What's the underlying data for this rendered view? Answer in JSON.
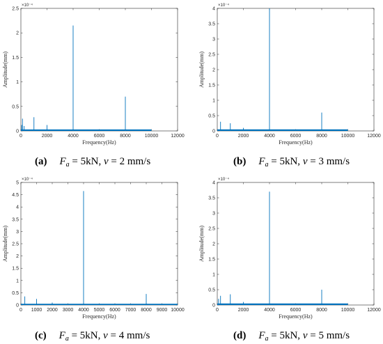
{
  "chart_data": [
    {
      "type": "line",
      "panel": "a",
      "caption": {
        "letter": "(a)",
        "load": "5kN",
        "speed": "2",
        "unit": "mm/s"
      },
      "xlabel": "Frequency(Hz)",
      "ylabel": "Amplitude(mm)",
      "y_exponent": "×10⁻⁴",
      "xlim": [
        0,
        12000
      ],
      "ylim": [
        0,
        2.5
      ],
      "xticks": [
        0,
        2000,
        4000,
        6000,
        8000,
        10000,
        12000
      ],
      "yticks": [
        0,
        0.5,
        1,
        1.5,
        2,
        2.5
      ],
      "ytick_labels": [
        "0",
        "0.5",
        "1",
        "1.5",
        "2",
        "2.5"
      ],
      "noise_floor": 0.03,
      "data_xmax": 10000,
      "x": [
        60,
        120,
        250,
        1000,
        2000,
        4000,
        8000
      ],
      "y": [
        0.12,
        0.25,
        0.1,
        0.28,
        0.12,
        2.15,
        0.7
      ]
    },
    {
      "type": "line",
      "panel": "b",
      "caption": {
        "letter": "(b)",
        "load": "5kN",
        "speed": "3",
        "unit": "mm/s"
      },
      "xlabel": "Frequency(Hz)",
      "ylabel": "Amplitude(mm)",
      "y_exponent": "×10⁻⁴",
      "xlim": [
        0,
        12000
      ],
      "ylim": [
        0,
        4
      ],
      "xticks": [
        0,
        2000,
        4000,
        6000,
        8000,
        10000,
        12000
      ],
      "yticks": [
        0,
        0.5,
        1,
        1.5,
        2,
        2.5,
        3,
        3.5,
        4
      ],
      "ytick_labels": [
        "0",
        "0.5",
        "1",
        "1.5",
        "2",
        "2.5",
        "3",
        "3.5",
        "4"
      ],
      "noise_floor": 0.05,
      "data_xmax": 10000,
      "x": [
        250,
        1000,
        2000,
        4000,
        8000
      ],
      "y": [
        0.3,
        0.25,
        0.1,
        4.0,
        0.6
      ]
    },
    {
      "type": "line",
      "panel": "c",
      "caption": {
        "letter": "(c)",
        "load": "5kN",
        "speed": "4",
        "unit": "mm/s"
      },
      "xlabel": "Frequency(Hz)",
      "ylabel": "Amplitude(mm)",
      "y_exponent": "×10⁻⁴",
      "xlim": [
        0,
        10000
      ],
      "ylim": [
        0,
        5
      ],
      "xticks": [
        0,
        1000,
        2000,
        3000,
        4000,
        5000,
        6000,
        7000,
        8000,
        9000,
        10000
      ],
      "yticks": [
        0,
        0.5,
        1,
        1.5,
        2,
        2.5,
        3,
        3.5,
        4,
        4.5,
        5
      ],
      "ytick_labels": [
        "0",
        "0.5",
        "1",
        "1.5",
        "2",
        "2.5",
        "3",
        "3.5",
        "4",
        "4.5",
        "5"
      ],
      "noise_floor": 0.05,
      "data_xmax": 10000,
      "x": [
        250,
        1000,
        2000,
        4000,
        8000
      ],
      "y": [
        0.35,
        0.25,
        0.1,
        4.65,
        0.45
      ]
    },
    {
      "type": "line",
      "panel": "d",
      "caption": {
        "letter": "(d)",
        "load": "5kN",
        "speed": "5",
        "unit": "mm/s"
      },
      "xlabel": "Frequency(Hz)",
      "ylabel": "Amplitude(mm)",
      "y_exponent": "×10⁻⁴",
      "xlim": [
        0,
        12000
      ],
      "ylim": [
        0,
        4
      ],
      "xticks": [
        0,
        2000,
        4000,
        6000,
        8000,
        10000,
        12000
      ],
      "yticks": [
        0,
        0.5,
        1,
        1.5,
        2,
        2.5,
        3,
        3.5,
        4
      ],
      "ytick_labels": [
        "0",
        "0.5",
        "1",
        "1.5",
        "2",
        "2.5",
        "3",
        "3.5",
        "4"
      ],
      "noise_floor": 0.05,
      "data_xmax": 10000,
      "x": [
        100,
        250,
        1000,
        2000,
        4000,
        8000
      ],
      "y": [
        0.2,
        0.3,
        0.35,
        0.1,
        3.7,
        0.5
      ]
    }
  ],
  "colors": {
    "series": "#0072bd",
    "axis": "#262626"
  }
}
